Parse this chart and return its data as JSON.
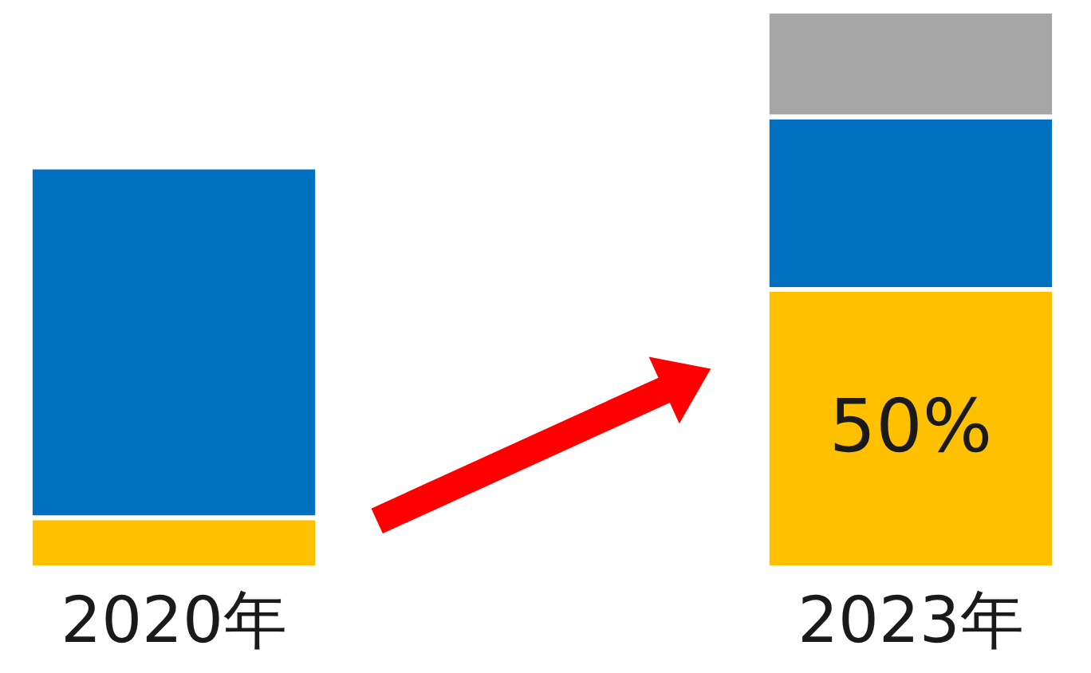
{
  "chart_data": {
    "type": "bar",
    "stacked": true,
    "grid": false,
    "tick_labels": "x",
    "ylim": [
      0,
      100
    ],
    "categories": [
      "2020年",
      "2023年"
    ],
    "series": [
      {
        "color": "#ffc000",
        "values": [
          9,
          50
        ],
        "value_labels": [
          null,
          "50%"
        ]
      },
      {
        "color": "#0070c0",
        "values": [
          63,
          31
        ]
      },
      {
        "color": "#a6a6a6",
        "values": [
          null,
          19
        ]
      }
    ]
  }
}
